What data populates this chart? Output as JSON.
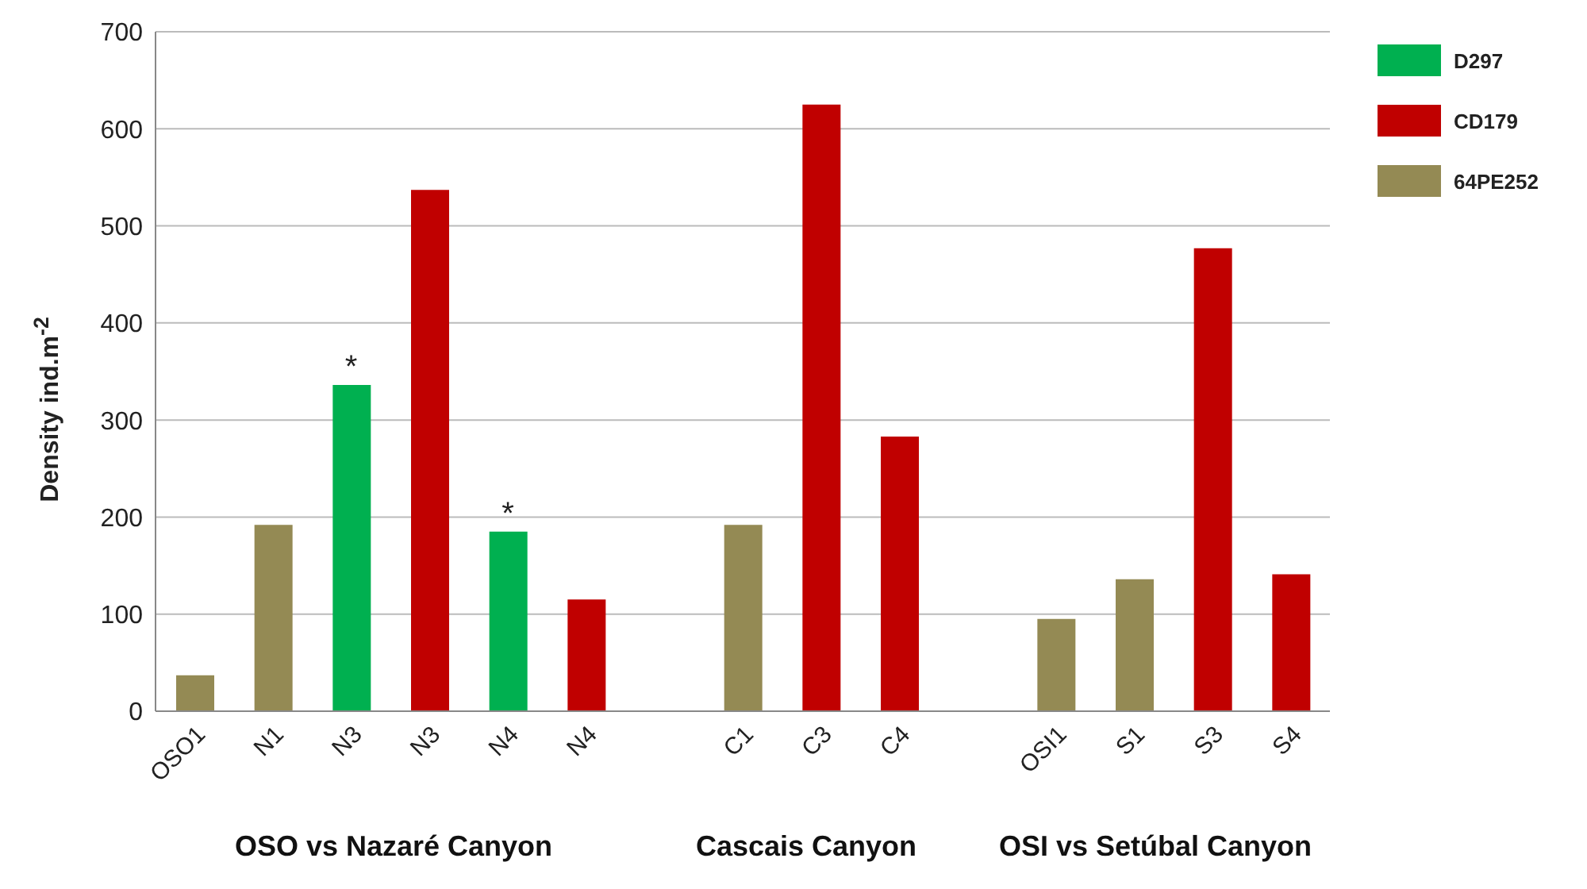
{
  "chart_data": {
    "type": "bar",
    "ylabel": "Density ind.m$^{-2}$",
    "categories": [
      "OSO1",
      "N1",
      "N3",
      "N3",
      "N4",
      "N4",
      null,
      "C1",
      "C3",
      "C4",
      null,
      "OSI1",
      "S1",
      "S3",
      "S4"
    ],
    "series": [
      {
        "name": "D297",
        "color": "#00b050",
        "values": [
          null,
          null,
          336,
          null,
          185,
          null,
          null,
          null,
          null,
          null,
          null,
          null,
          null,
          null,
          null
        ]
      },
      {
        "name": "CD179",
        "color": "#c00000",
        "values": [
          null,
          null,
          null,
          537,
          null,
          115,
          null,
          null,
          625,
          283,
          null,
          null,
          null,
          477,
          141
        ]
      },
      {
        "name": "64PE252",
        "color": "#948a54",
        "values": [
          37,
          192,
          null,
          null,
          null,
          null,
          null,
          192,
          null,
          null,
          null,
          95,
          136,
          null,
          null
        ]
      }
    ],
    "ylim": [
      0,
      700
    ],
    "yticks": [
      0,
      100,
      200,
      300,
      400,
      500,
      600,
      700
    ],
    "grid": "y",
    "legend": "top right",
    "annotations": [
      {
        "text": "*",
        "x": "N3",
        "y": 336
      },
      {
        "text": "*",
        "x": "N4",
        "y": 185
      },
      "OSO vs Nazaré Canyon",
      "Cascais Canyon",
      "OSI vs Setúbal Canyon"
    ]
  }
}
